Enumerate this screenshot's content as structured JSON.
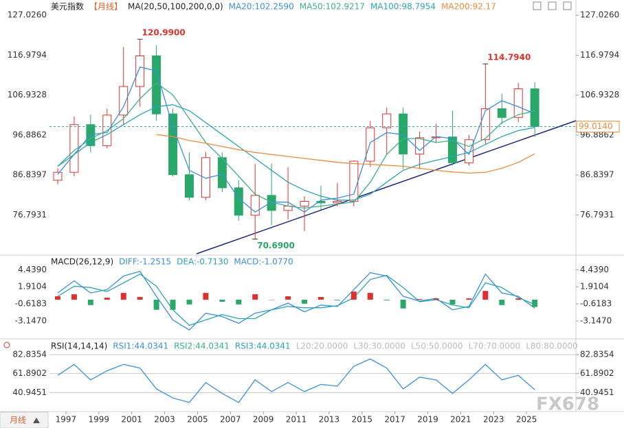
{
  "chart_data": [
    {
      "type": "candlestick",
      "legend": [
        {
          "text": "美元指数",
          "color": "#222222"
        },
        {
          "text": "【月线】",
          "color": "#e8602c"
        },
        {
          "text": "MA(20,50,100,200,0,0)",
          "color": "#222222"
        }
      ],
      "x": [
        1996,
        1997,
        1998,
        1999,
        2000,
        2001,
        2002,
        2003,
        2004,
        2005,
        2006,
        2007,
        2008,
        2009,
        2010,
        2011,
        2012,
        2013,
        2014,
        2015,
        2016,
        2017,
        2018,
        2019,
        2020,
        2021,
        2022,
        2023,
        2024,
        2025
      ],
      "open": [
        85.5,
        87.5,
        99.5,
        94.2,
        101.9,
        109.1,
        116.8,
        102.2,
        86.9,
        81.2,
        91.2,
        83.6,
        76.7,
        81.7,
        77.9,
        79.0,
        80.2,
        79.8,
        80.2,
        90.3,
        98.7,
        102.2,
        92.1,
        96.2,
        96.4,
        89.9,
        95.7,
        103.5,
        101.3,
        108.5
      ],
      "high": [
        88.5,
        101.5,
        102.0,
        103.5,
        119.0,
        120.99,
        119.5,
        103.5,
        92.5,
        92.6,
        92.5,
        85.5,
        89.6,
        89.7,
        88.8,
        81.5,
        84.1,
        84.8,
        90.5,
        100.4,
        103.8,
        103.8,
        97.7,
        99.7,
        103.0,
        96.9,
        114.794,
        107.3,
        110.0,
        110.2
      ],
      "low": [
        84.5,
        86.5,
        92.5,
        93.5,
        99.5,
        104.0,
        100.5,
        86.5,
        80.4,
        80.5,
        82.5,
        75.3,
        70.69,
        74.2,
        75.6,
        72.7,
        78.1,
        78.9,
        78.9,
        88.9,
        91.9,
        88.3,
        88.3,
        95.0,
        89.2,
        89.2,
        94.6,
        99.6,
        100.2,
        96.4
      ],
      "close": [
        87.5,
        99.5,
        94.2,
        101.9,
        109.1,
        116.8,
        102.2,
        86.9,
        81.2,
        91.2,
        83.6,
        76.7,
        81.7,
        77.9,
        79.0,
        80.2,
        79.8,
        80.2,
        90.3,
        98.7,
        102.2,
        92.1,
        96.2,
        96.4,
        89.9,
        95.7,
        103.5,
        101.3,
        108.5,
        99.014
      ],
      "up_color": "#e0302c",
      "down_color": "#2aa86a",
      "series": [
        {
          "label": "MA20:102.2590",
          "color": "#3a8ede",
          "values": [
            87,
            92,
            97,
            97.5,
            104,
            114,
            113,
            99,
            88,
            86,
            87,
            81,
            77.5,
            80,
            80,
            77.5,
            80.5,
            81,
            82,
            95,
            97.5,
            97,
            93,
            96.5,
            96,
            92,
            103,
            105.5,
            104,
            102.259
          ]
        },
        {
          "label": "MA50:102.9217",
          "color": "#3cb08a",
          "values": [
            89,
            93,
            96,
            98,
            101,
            106,
            110,
            107,
            101,
            95,
            91,
            86.5,
            82,
            80,
            79,
            78.5,
            79,
            79.5,
            80,
            85,
            92,
            96,
            96,
            95,
            95.5,
            94,
            96,
            100,
            102,
            102.9217
          ]
        },
        {
          "label": "MA100:98.7954",
          "color": "#2aa3b5",
          "values": [
            89,
            92,
            95,
            97,
            99.5,
            102,
            104,
            104.5,
            103,
            100,
            97,
            94,
            91,
            88,
            85,
            83,
            81.5,
            80.5,
            80.5,
            82,
            85,
            88,
            89.5,
            90.5,
            91.5,
            92.5,
            94.5,
            96.5,
            98,
            98.7954
          ]
        },
        {
          "label": "MA200:92.17",
          "color": "#f08a3a",
          "values": [
            null,
            null,
            null,
            null,
            null,
            null,
            97,
            96.5,
            95.5,
            94.8,
            94,
            93.2,
            92.5,
            92,
            91.5,
            91,
            90.5,
            90,
            89.7,
            89.5,
            89.3,
            89,
            88.5,
            88,
            87.6,
            87.3,
            87.5,
            88.5,
            90,
            92.17
          ]
        }
      ],
      "annotations": [
        {
          "x": 2001,
          "value": 120.99,
          "label": "120.9900",
          "color": "#e0302c"
        },
        {
          "x": 2022,
          "value": 114.794,
          "label": "114.7940",
          "color": "#e0302c"
        },
        {
          "x": 2008,
          "value": 70.69,
          "label": "70.6900",
          "color": "#2aa86a"
        }
      ],
      "current": {
        "value": 99.014,
        "label": "99.0140",
        "color": "#f08a3a"
      },
      "xlim": [
        1996,
        2028
      ],
      "ylim": [
        67,
        130
      ],
      "yticks": [
        {
          "value": 127.026,
          "label": "127.0260"
        },
        {
          "value": 116.9794,
          "label": "116.9794"
        },
        {
          "value": 106.9328,
          "label": "106.9328"
        },
        {
          "value": 96.8862,
          "label": "96.8862"
        },
        {
          "value": 86.8397,
          "label": "86.8397"
        },
        {
          "value": 76.7931,
          "label": "76.7931"
        }
      ],
      "grid": false
    },
    {
      "type": "macd",
      "legend": [
        {
          "text": "MACD(26,12,9)",
          "color": "#222222"
        }
      ],
      "x": [
        1996,
        1997,
        1998,
        1999,
        2000,
        2001,
        2002,
        2003,
        2004,
        2005,
        2006,
        2007,
        2008,
        2009,
        2010,
        2011,
        2012,
        2013,
        2014,
        2015,
        2016,
        2017,
        2018,
        2019,
        2020,
        2021,
        2022,
        2023,
        2024,
        2025
      ],
      "series": [
        {
          "label": "DIFF:-1.2515",
          "color": "#3a8ede",
          "style": "line",
          "values": [
            1.0,
            2.8,
            1.0,
            1.5,
            3.5,
            4.2,
            0.5,
            -3.0,
            -4.5,
            -2.0,
            -2.5,
            -3.5,
            -2.0,
            -1.5,
            -0.5,
            -1.8,
            -0.8,
            -1.0,
            1.5,
            4.0,
            3.5,
            0.5,
            -0.2,
            0.2,
            -1.5,
            -1.0,
            3.8,
            1.0,
            0.5,
            -1.2515
          ]
        },
        {
          "label": "DEA:-0.7130",
          "color": "#2aa3b5",
          "style": "line",
          "values": [
            0.5,
            2.0,
            1.8,
            1.2,
            2.5,
            3.8,
            2.0,
            -1.5,
            -3.8,
            -3.0,
            -2.2,
            -2.8,
            -2.8,
            -1.5,
            -1.0,
            -1.2,
            -1.2,
            -0.9,
            0.3,
            3.0,
            3.6,
            1.8,
            -0.3,
            0.0,
            -0.8,
            -1.2,
            2.5,
            1.8,
            0.3,
            -0.713
          ]
        },
        {
          "label": "MACD:-1.0770",
          "color": "#3a8ede",
          "style": "bar",
          "up_color": "#e0302c",
          "down_color": "#2aa86a",
          "values": [
            0.5,
            0.8,
            -0.8,
            0.3,
            1.0,
            0.4,
            -1.5,
            -1.5,
            -0.7,
            1.0,
            -0.3,
            -0.7,
            0.8,
            0.0,
            0.5,
            -0.6,
            0.4,
            -0.1,
            1.2,
            1.0,
            -0.1,
            -1.3,
            0.1,
            0.2,
            -0.7,
            0.2,
            1.3,
            -0.8,
            0.2,
            -1.077
          ]
        }
      ],
      "xlim": [
        1996,
        2028
      ],
      "ylim": [
        -5.6,
        6.4
      ],
      "yticks": [
        {
          "value": 4.439,
          "label": "4.4390"
        },
        {
          "value": 1.9104,
          "label": "1.9104"
        },
        {
          "value": -0.6183,
          "label": "-0.6183"
        },
        {
          "value": -3.147,
          "label": "-3.1470"
        }
      ],
      "grid": false
    },
    {
      "type": "line",
      "legend": [
        {
          "text": "RSI(14,14,14)",
          "color": "#222222"
        }
      ],
      "x": [
        1996,
        1997,
        1998,
        1999,
        2000,
        2001,
        2002,
        2003,
        2004,
        2005,
        2006,
        2007,
        2008,
        2009,
        2010,
        2011,
        2012,
        2013,
        2014,
        2015,
        2016,
        2017,
        2018,
        2019,
        2020,
        2021,
        2022,
        2023,
        2024,
        2025
      ],
      "series": [
        {
          "label": "RSI1:44.0341",
          "color": "#3a8ede",
          "values": [
            60,
            72,
            55,
            65,
            72,
            68,
            45,
            35,
            30,
            52,
            40,
            30,
            55,
            42,
            52,
            42,
            50,
            48,
            70,
            78,
            68,
            45,
            58,
            55,
            40,
            55,
            72,
            55,
            60,
            44.0341
          ]
        }
      ],
      "legend_extra": [
        {
          "text": "RSI2:44.0341",
          "color": "#3cb08a"
        },
        {
          "text": "RSI3:44.0341",
          "color": "#2aa3b5"
        },
        {
          "text": "L20:20.0000",
          "color": "#bbbbbb"
        },
        {
          "text": "L30:30.0000",
          "color": "#bbbbbb"
        },
        {
          "text": "L50:50.0000",
          "color": "#bbbbbb"
        },
        {
          "text": "L70:70.0000",
          "color": "#bbbbbb"
        },
        {
          "text": "L80:80.0000",
          "color": "#bbbbbb"
        }
      ],
      "xlim": [
        1996,
        2028
      ],
      "ylim": [
        20,
        98
      ],
      "yticks": [
        {
          "value": 82.8354,
          "label": "82.8354"
        },
        {
          "value": 61.8902,
          "label": "61.8902"
        },
        {
          "value": 40.9451,
          "label": "40.9451"
        }
      ],
      "xticks": [
        1997,
        1999,
        2001,
        2003,
        2005,
        2007,
        2009,
        2011,
        2013,
        2015,
        2017,
        2019,
        2021,
        2023,
        2025
      ],
      "grid": true
    }
  ],
  "footer": {
    "period": "月线",
    "watermark": "FX678"
  }
}
